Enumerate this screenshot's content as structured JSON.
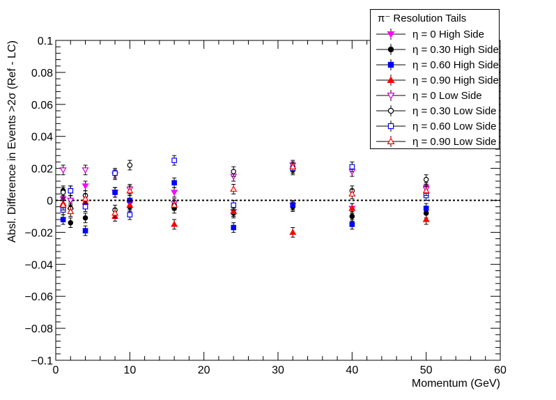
{
  "chart_data": {
    "type": "scatter",
    "title": "",
    "xlabel": "Momentum (GeV)",
    "ylabel": "Absl. Difference in Events >2σ (Ref - LC)",
    "xlim": [
      0,
      60
    ],
    "ylim": [
      -0.1,
      0.1
    ],
    "x_ticks": [
      "0",
      "10",
      "20",
      "30",
      "40",
      "50",
      "60"
    ],
    "y_ticks": [
      "−0.1",
      "−0.08",
      "−0.06",
      "−0.04",
      "−0.02",
      "0",
      "0.02",
      "0.04",
      "0.06",
      "0.08",
      "0.1"
    ],
    "reference_line": {
      "y": 0,
      "style": "dashed"
    },
    "legend_title": "π⁻ Resolution Tails",
    "legend_position": "top-right",
    "x": [
      1,
      2,
      4,
      8,
      10,
      16,
      24,
      32,
      40,
      50
    ],
    "series": [
      {
        "name": "η = 0 High Side",
        "color": "#ff00ff",
        "marker": "triangle-down-filled",
        "values": [
          0.001,
          0.0,
          0.009,
          0.005,
          -0.002,
          0.005,
          -0.007,
          -0.003,
          -0.005,
          0.008
        ],
        "errors": [
          0.003,
          0.003,
          0.003,
          0.003,
          0.003,
          0.003,
          0.003,
          0.003,
          0.003,
          0.003
        ]
      },
      {
        "name": "η = 0.30 High Side",
        "color": "#000000",
        "marker": "circle-filled",
        "values": [
          0.006,
          -0.014,
          -0.011,
          0.005,
          -0.004,
          -0.005,
          -0.008,
          -0.004,
          -0.01,
          -0.008
        ],
        "errors": [
          0.003,
          0.003,
          0.003,
          0.003,
          0.003,
          0.003,
          0.003,
          0.003,
          0.003,
          0.003
        ]
      },
      {
        "name": "η = 0.60 High Side",
        "color": "#0000ff",
        "marker": "square-filled",
        "values": [
          -0.012,
          0.006,
          -0.019,
          0.005,
          0.0,
          0.011,
          -0.017,
          -0.003,
          -0.015,
          -0.005
        ],
        "errors": [
          0.003,
          0.003,
          0.003,
          0.003,
          0.003,
          0.003,
          0.003,
          0.003,
          0.003,
          0.003
        ]
      },
      {
        "name": "η = 0.90 High Side",
        "color": "#ff0000",
        "marker": "triangle-up-filled",
        "values": [
          -0.002,
          -0.004,
          -0.001,
          -0.01,
          -0.003,
          -0.015,
          -0.007,
          -0.02,
          -0.005,
          -0.012
        ],
        "errors": [
          0.003,
          0.003,
          0.003,
          0.003,
          0.003,
          0.003,
          0.003,
          0.003,
          0.003,
          0.003
        ]
      },
      {
        "name": "η = 0 Low Side",
        "color": "#cc00cc",
        "marker": "triangle-down-open",
        "values": [
          0.019,
          0.0,
          0.019,
          0.016,
          0.007,
          -0.002,
          0.015,
          0.022,
          0.018,
          0.007
        ],
        "errors": [
          0.003,
          0.003,
          0.003,
          0.003,
          0.003,
          0.003,
          0.003,
          0.003,
          0.003,
          0.003
        ]
      },
      {
        "name": "η = 0.30 Low Side",
        "color": "#000000",
        "marker": "circle-open",
        "values": [
          0.005,
          -0.005,
          0.003,
          -0.006,
          0.022,
          -0.003,
          0.018,
          0.019,
          0.006,
          0.013
        ],
        "errors": [
          0.003,
          0.003,
          0.003,
          0.003,
          0.003,
          0.003,
          0.003,
          0.003,
          0.003,
          0.003
        ]
      },
      {
        "name": "η = 0.60 Low Side",
        "color": "#0000ff",
        "marker": "square-open",
        "values": [
          -0.006,
          0.006,
          -0.004,
          0.017,
          -0.009,
          0.025,
          -0.003,
          0.02,
          0.021,
          0.003
        ],
        "errors": [
          0.003,
          0.003,
          0.003,
          0.003,
          0.003,
          0.003,
          0.003,
          0.003,
          0.003,
          0.003
        ]
      },
      {
        "name": "η = 0.90 Low Side",
        "color": "#ff0000",
        "marker": "triangle-up-open",
        "values": [
          -0.003,
          -0.007,
          0.001,
          -0.008,
          0.006,
          -0.003,
          0.007,
          0.021,
          0.004,
          0.006
        ],
        "errors": [
          0.003,
          0.003,
          0.003,
          0.003,
          0.003,
          0.003,
          0.003,
          0.003,
          0.003,
          0.003
        ]
      }
    ]
  }
}
